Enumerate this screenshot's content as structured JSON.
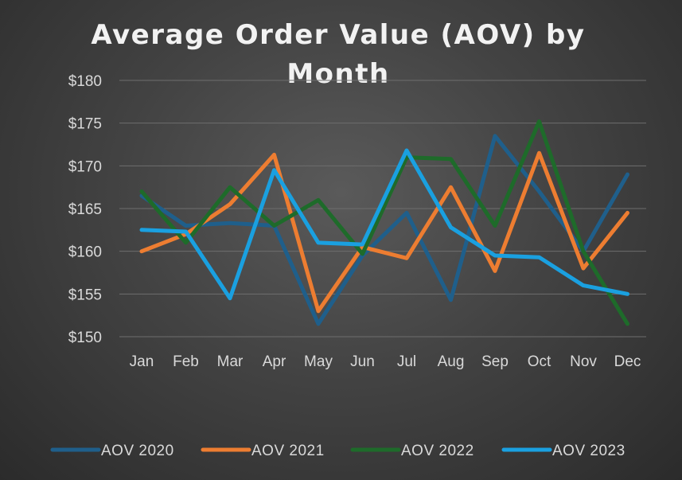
{
  "chart_data": {
    "type": "line",
    "title": "Average Order Value (AOV) by Month",
    "categories": [
      "Jan",
      "Feb",
      "Mar",
      "Apr",
      "May",
      "Jun",
      "Jul",
      "Aug",
      "Sep",
      "Oct",
      "Nov",
      "Dec"
    ],
    "ylim": [
      150,
      180
    ],
    "yticks": [
      150,
      155,
      160,
      165,
      170,
      175,
      180
    ],
    "ytick_labels": [
      "$150",
      "$155",
      "$160",
      "$165",
      "$170",
      "$175",
      "$180"
    ],
    "grid": true,
    "legend_position": "bottom",
    "series": [
      {
        "name": "AOV 2020",
        "color": "#1f5f8b",
        "values": [
          166.5,
          163.0,
          163.3,
          163.0,
          151.5,
          159.5,
          164.5,
          154.3,
          173.5,
          167.0,
          160.0,
          169.0
        ]
      },
      {
        "name": "AOV 2021",
        "color": "#ed7d31",
        "values": [
          160.0,
          162.0,
          165.5,
          171.3,
          153.0,
          160.5,
          159.2,
          167.5,
          157.7,
          171.5,
          158.0,
          164.5
        ]
      },
      {
        "name": "AOV 2022",
        "color": "#1e6b2a",
        "values": [
          167.0,
          161.0,
          167.5,
          163.0,
          166.0,
          159.7,
          171.0,
          170.8,
          163.0,
          175.2,
          160.0,
          151.5
        ]
      },
      {
        "name": "AOV 2023",
        "color": "#1aa0e0",
        "values": [
          162.5,
          162.3,
          154.5,
          169.5,
          161.0,
          160.8,
          171.8,
          162.8,
          159.5,
          159.3,
          156.0,
          155.0
        ]
      }
    ]
  }
}
